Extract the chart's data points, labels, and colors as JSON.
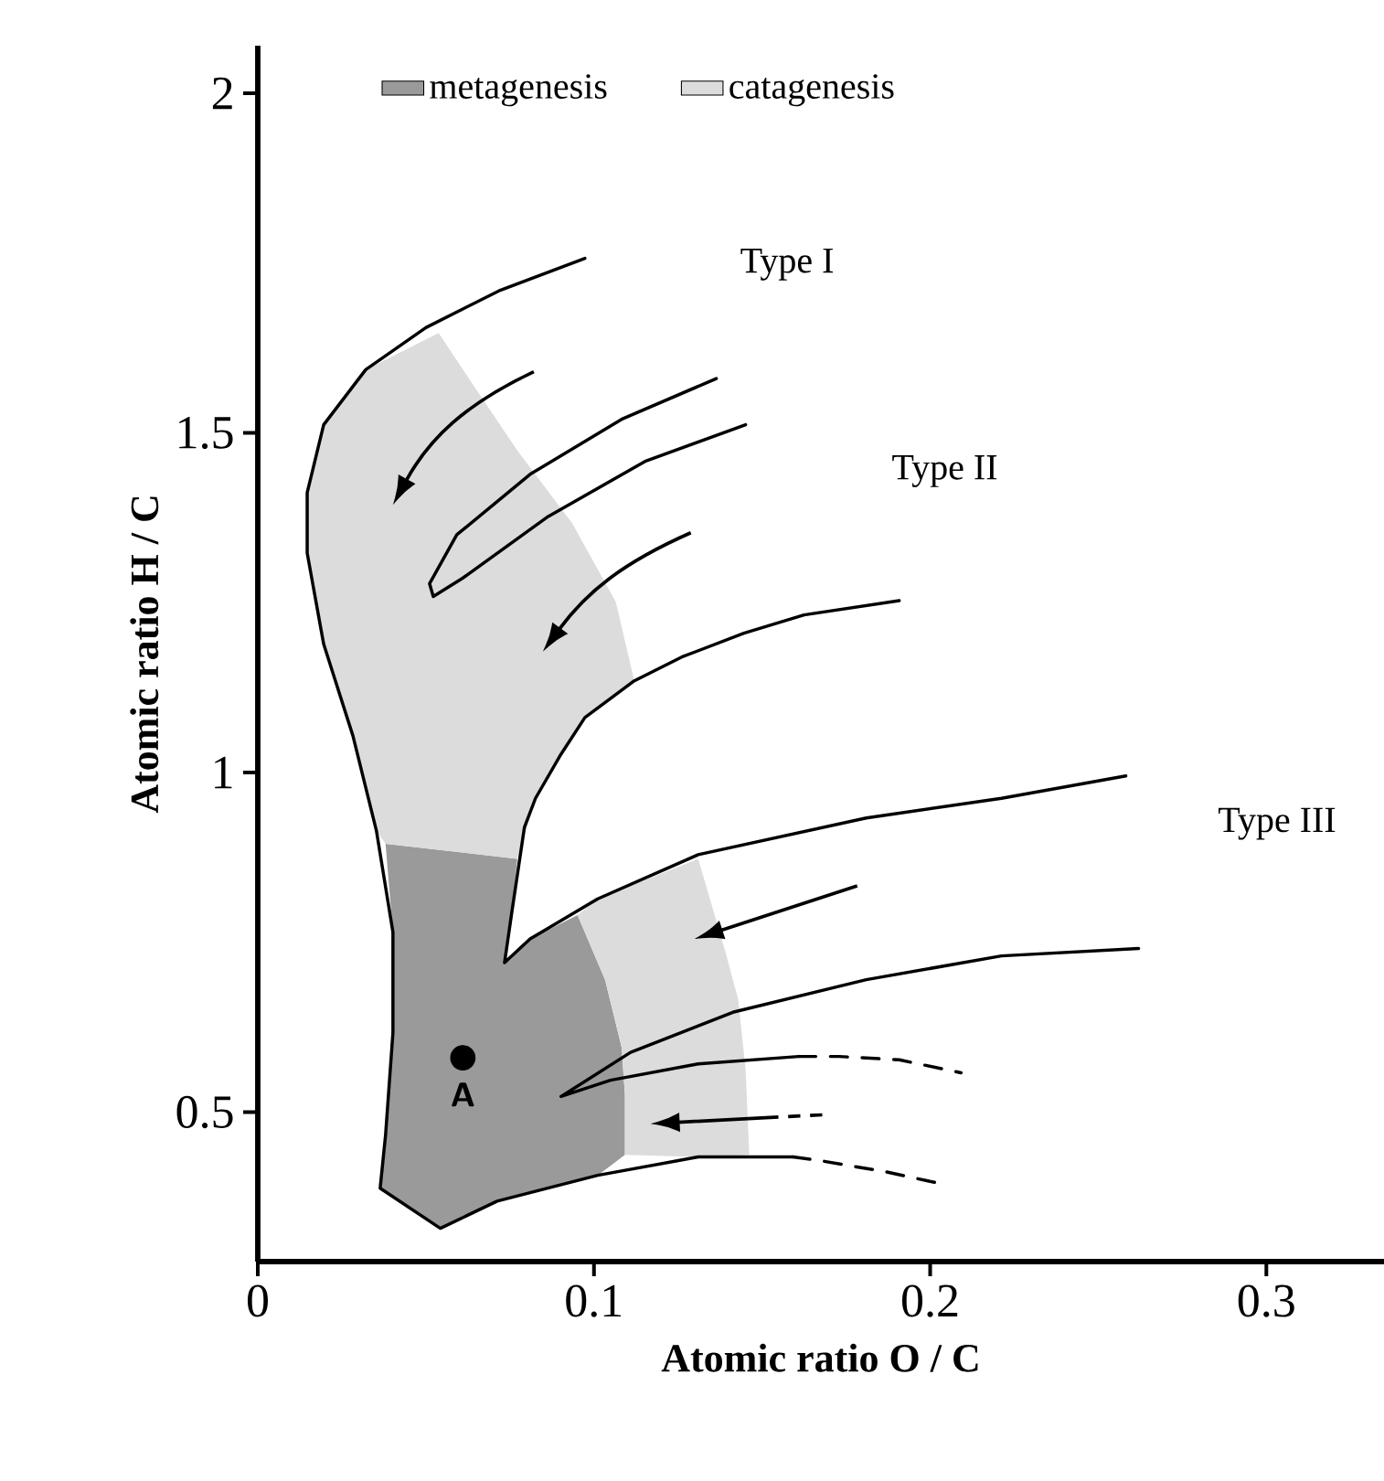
{
  "chart_data": {
    "type": "line",
    "xlabel": "Atomic ratio O / C",
    "ylabel": "Atomic ratio  H / C",
    "xlim": [
      0,
      0.335
    ],
    "ylim": [
      0.28,
      2.07
    ],
    "xticks": [
      0,
      0.1,
      0.2,
      0.3
    ],
    "yticks": [
      0.5,
      1,
      1.5,
      2
    ],
    "legend": "top",
    "series": [
      {
        "type": "area",
        "name": "metagenesis",
        "color": "#9a9a9a",
        "x": [
          0.038,
          0.0772,
          0.0755,
          0.0734,
          0.081,
          0.0951,
          0.1033,
          0.1082,
          0.1092,
          0.1092,
          0.1011,
          0.0712,
          0.0543,
          0.0364,
          0.038,
          0.0402,
          0.0402
        ],
        "values": [
          0.895,
          0.873,
          0.792,
          0.72,
          0.755,
          0.79,
          0.695,
          0.596,
          0.526,
          0.437,
          0.407,
          0.369,
          0.329,
          0.388,
          0.466,
          0.617,
          0.765
        ]
      },
      {
        "type": "area",
        "name": "catagenesis",
        "color": "#dcdcdc",
        "x": [
          0.0538,
          0.0647,
          0.0772,
          0.0935,
          0.1065,
          0.112,
          0.0973,
          0.0902,
          0.0826,
          0.0772,
          0.038,
          0.0353,
          0.0283,
          0.0196,
          0.0147,
          0.0147,
          0.0196,
          0.0321,
          null,
          0.0951,
          0.1011,
          0.131,
          0.1391,
          0.1429,
          0.1451,
          0.1462,
          0.131,
          0.1092,
          0.1092,
          0.1082,
          0.1033
        ],
        "values": [
          1.647,
          1.566,
          1.474,
          1.367,
          1.251,
          1.135,
          1.081,
          1.027,
          0.962,
          0.873,
          0.895,
          0.914,
          1.054,
          1.189,
          1.323,
          1.412,
          1.512,
          1.593,
          null,
          0.79,
          0.814,
          0.873,
          0.736,
          0.666,
          0.563,
          0.437,
          0.434,
          0.437,
          0.526,
          0.596,
          0.695
        ]
      },
      {
        "color": "#000000",
        "line_style": "solid",
        "x": [
          0.0973,
          0.0717,
          0.05,
          0.0321,
          0.0196,
          0.0147,
          0.0147,
          0.0196,
          0.0283,
          0.0353,
          0.0402,
          0.0402,
          0.038,
          0.0364,
          0.0543,
          0.0712,
          0.1011,
          0.131,
          0.1592
        ],
        "values": [
          1.757,
          1.709,
          1.655,
          1.593,
          1.512,
          1.412,
          1.323,
          1.189,
          1.054,
          0.914,
          0.765,
          0.617,
          0.466,
          0.388,
          0.329,
          0.369,
          0.407,
          0.434,
          0.434
        ]
      },
      {
        "color": "#000000",
        "line_style": "dashed",
        "x": [
          0.1592,
          0.1668,
          0.187,
          0.2038
        ],
        "values": [
          0.434,
          0.429,
          0.412,
          0.394
        ]
      },
      {
        "color": "#000000",
        "line_style": "solid",
        "x": [
          0.1364,
          0.1082,
          0.081,
          0.0592,
          0.0511,
          0.0522,
          0.0609,
          0.0864,
          0.1152,
          0.1451
        ],
        "values": [
          1.58,
          1.52,
          1.439,
          1.35,
          1.278,
          1.259,
          1.286,
          1.377,
          1.458,
          1.512
        ]
      },
      {
        "color": "#000000",
        "line_style": "solid",
        "x": [
          0.1908,
          0.1625,
          0.1446,
          0.1261,
          0.112,
          0.0973,
          0.0902,
          0.0826,
          0.0793,
          0.0755,
          0.0734,
          0.081,
          0.1011,
          0.131,
          0.181,
          0.2212,
          0.2582
        ],
        "values": [
          1.253,
          1.232,
          1.205,
          1.17,
          1.135,
          1.081,
          1.027,
          0.962,
          0.919,
          0.792,
          0.72,
          0.755,
          0.814,
          0.879,
          0.933,
          0.962,
          0.995
        ]
      },
      {
        "color": "#000000",
        "line_style": "solid",
        "x": [
          0.262,
          0.2212,
          0.181,
          0.1413,
          0.1109,
          0.0902,
          0.1049,
          0.131,
          0.1609
        ],
        "values": [
          0.741,
          0.73,
          0.695,
          0.647,
          0.588,
          0.523,
          0.547,
          0.571,
          0.582
        ]
      },
      {
        "color": "#000000",
        "line_style": "dashed",
        "x": [
          0.1609,
          0.1728,
          0.1908,
          0.2092
        ],
        "values": [
          0.582,
          0.582,
          0.577,
          0.558
        ]
      },
      {
        "type": "scatter",
        "marker": "circle",
        "color": "#000000",
        "x": [
          0.061
        ],
        "values": [
          0.58
        ]
      }
    ],
    "annotations": [
      "Type I",
      "Type II",
      "Type III",
      {
        "text": "A",
        "x": 0.061,
        "y": 0.58
      }
    ]
  }
}
